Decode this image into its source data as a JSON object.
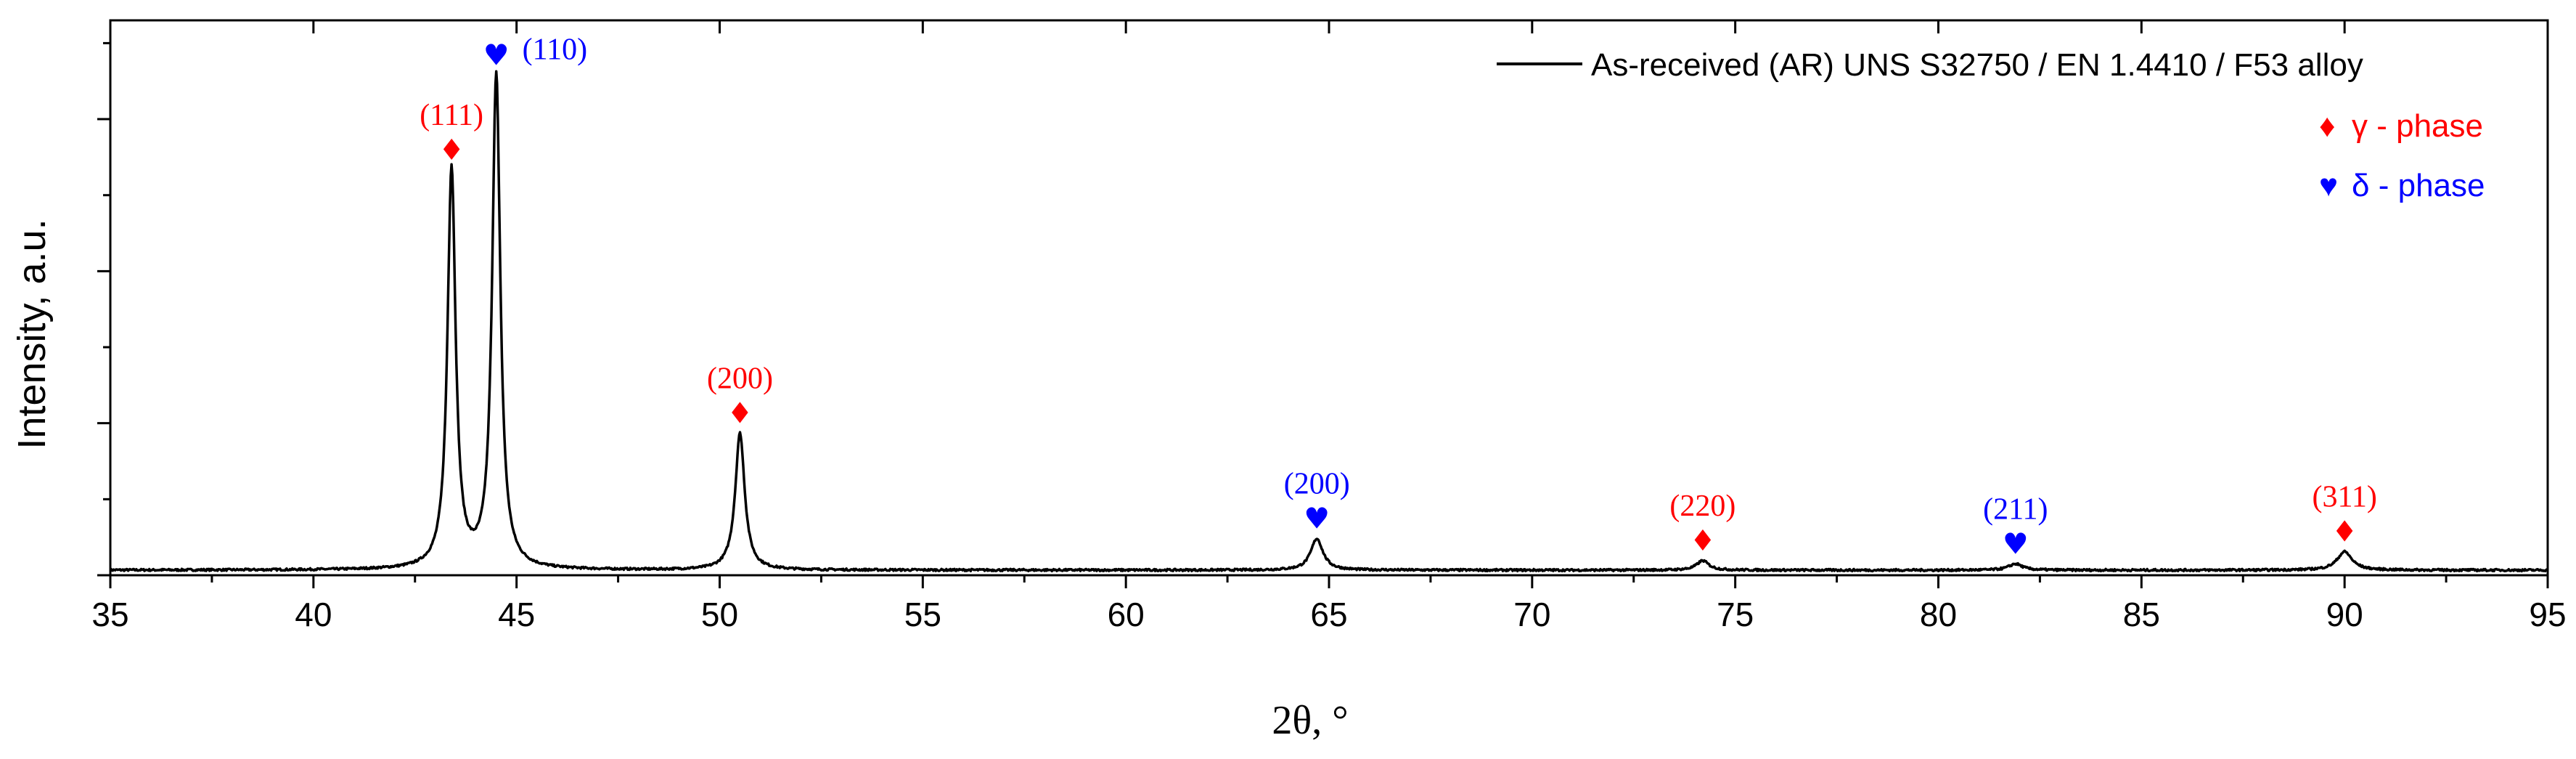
{
  "chart_data": {
    "type": "line",
    "xlabel": "2θ, °",
    "ylabel": "Intensity, a.u.",
    "xlim": [
      35,
      95
    ],
    "ylim": [
      0,
      1
    ],
    "x_ticks": [
      35,
      40,
      45,
      50,
      55,
      60,
      65,
      70,
      75,
      80,
      85,
      90,
      95
    ],
    "y_tick_labels_shown": false,
    "grid": false,
    "legend_position": "top-right",
    "colors": {
      "trace": "#000000",
      "gamma": "#ff0000",
      "delta": "#0000ff"
    },
    "series": [
      {
        "name": "As-received (AR) UNS S32750 / EN 1.4410 / F53 alloy",
        "baseline": 0.0,
        "peaks": [
          {
            "x": 43.4,
            "y": 0.76,
            "width": 0.12
          },
          {
            "x": 44.5,
            "y": 0.94,
            "width": 0.12
          },
          {
            "x": 50.5,
            "y": 0.26,
            "width": 0.14
          },
          {
            "x": 64.7,
            "y": 0.06,
            "width": 0.18
          },
          {
            "x": 74.2,
            "y": 0.018,
            "width": 0.18
          },
          {
            "x": 81.9,
            "y": 0.012,
            "width": 0.2
          },
          {
            "x": 90.0,
            "y": 0.035,
            "width": 0.22
          }
        ]
      }
    ],
    "legend": {
      "line_label": "As-received (AR) UNS S32750 / EN 1.4410 / F53 alloy",
      "gamma_symbol": "♦",
      "gamma_label": "γ - phase",
      "delta_symbol": "♥",
      "delta_label": "δ - phase"
    },
    "annotations": [
      {
        "phase": "gamma",
        "symbol": "♦",
        "text": "(111)",
        "x": 43.4,
        "y": 0.76
      },
      {
        "phase": "delta",
        "symbol": "♥",
        "text": "(110)",
        "x": 44.5,
        "y": 0.94
      },
      {
        "phase": "gamma",
        "symbol": "♦",
        "text": "(200)",
        "x": 50.5,
        "y": 0.26
      },
      {
        "phase": "delta",
        "symbol": "♥",
        "text": "(200)",
        "x": 64.7,
        "y": 0.06
      },
      {
        "phase": "gamma",
        "symbol": "♦",
        "text": "(220)",
        "x": 74.2,
        "y": 0.018
      },
      {
        "phase": "delta",
        "symbol": "♥",
        "text": "(211)",
        "x": 81.9,
        "y": 0.012
      },
      {
        "phase": "gamma",
        "symbol": "♦",
        "text": "(311)",
        "x": 90.0,
        "y": 0.035
      }
    ]
  }
}
